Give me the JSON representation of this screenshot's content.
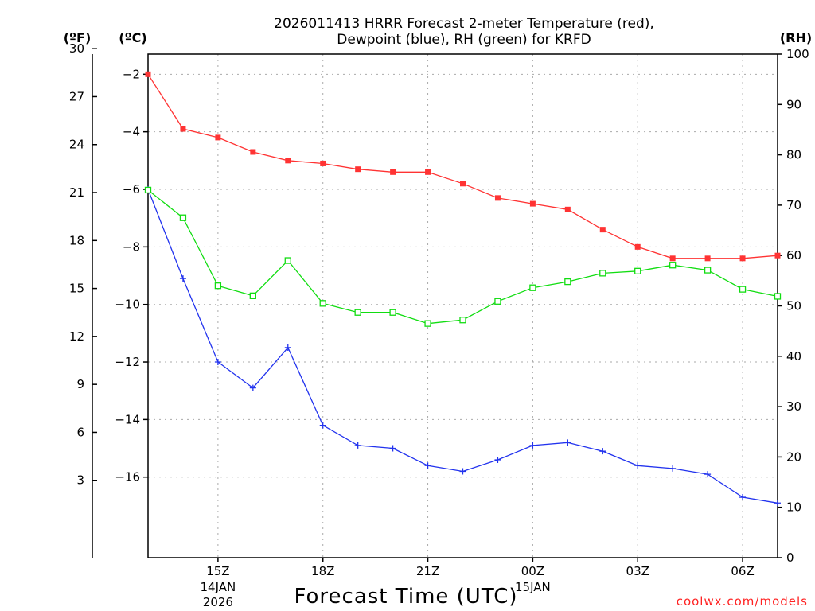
{
  "chart_data": {
    "type": "line",
    "title_line1": "2026011413 HRRR Forecast 2-meter Temperature (red),",
    "title_line2": "Dewpoint (blue), RH (green) for KRFD",
    "xlabel": "Forecast Time (UTC)",
    "credit": "coolwx.com/models",
    "unit_f": "(ºF)",
    "unit_c": "(ºC)",
    "unit_rh": "(RH)",
    "x_hours": [
      13,
      14,
      15,
      16,
      17,
      18,
      19,
      20,
      21,
      22,
      23,
      24,
      25,
      26,
      27,
      28,
      29,
      30,
      31
    ],
    "x_ticks": [
      {
        "hour": 15,
        "label": "15Z",
        "sub1": "14JAN",
        "sub2": "2026"
      },
      {
        "hour": 18,
        "label": "18Z",
        "sub1": "",
        "sub2": ""
      },
      {
        "hour": 21,
        "label": "21Z",
        "sub1": "",
        "sub2": ""
      },
      {
        "hour": 24,
        "label": "00Z",
        "sub1": "15JAN",
        "sub2": ""
      },
      {
        "hour": 27,
        "label": "03Z",
        "sub1": "",
        "sub2": ""
      },
      {
        "hour": 30,
        "label": "06Z",
        "sub1": "",
        "sub2": ""
      }
    ],
    "x_range": [
      13,
      31
    ],
    "c_range": [
      -18.8,
      -1.3
    ],
    "rh_range": [
      0,
      100
    ],
    "f_ticks": [
      "3",
      "6",
      "9",
      "12",
      "15",
      "18",
      "21",
      "24",
      "27",
      "30"
    ],
    "c_ticks": [
      "−16",
      "−14",
      "−12",
      "−10",
      "−8",
      "−6",
      "−4",
      "−2"
    ],
    "rh_ticks": [
      "0",
      "10",
      "20",
      "30",
      "40",
      "50",
      "60",
      "70",
      "80",
      "90",
      "100"
    ],
    "series": [
      {
        "name": "Temperature",
        "color": "#ff3333",
        "marker": "square-filled",
        "values": [
          -2.0,
          -3.9,
          -4.2,
          -4.7,
          -5.0,
          -5.1,
          -5.3,
          -5.4,
          -5.4,
          -5.8,
          -6.3,
          -6.5,
          -6.7,
          -7.4,
          -8.0,
          -8.4,
          -8.4,
          -8.4,
          -8.3
        ]
      },
      {
        "name": "Dewpoint",
        "color": "#2233ee",
        "marker": "plus",
        "values": [
          -6.0,
          -9.1,
          -12.0,
          -12.9,
          -11.5,
          -14.2,
          -14.9,
          -15.0,
          -15.6,
          -15.8,
          -15.4,
          -14.9,
          -14.8,
          -15.1,
          -15.6,
          -15.7,
          -15.9,
          -16.7,
          -16.9
        ]
      },
      {
        "name": "RH",
        "color": "#11dd11",
        "marker": "square-open",
        "values": [
          73,
          67.5,
          54,
          52,
          59,
          50.5,
          48.7,
          48.7,
          46.5,
          47.2,
          50.9,
          53.6,
          54.8,
          56.5,
          56.9,
          58.1,
          57.1,
          53.3,
          51.9
        ]
      }
    ]
  }
}
